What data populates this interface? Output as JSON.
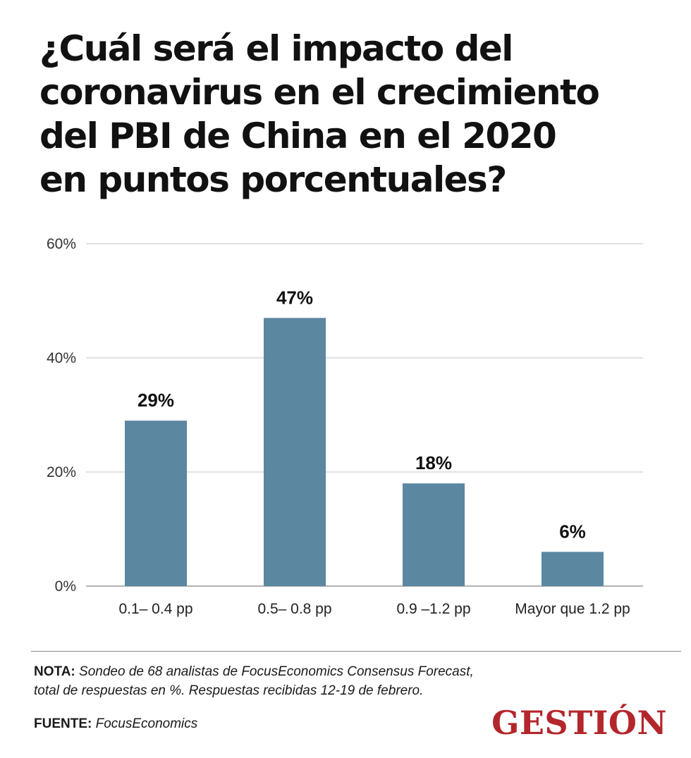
{
  "header": {
    "title_lines": [
      "¿Cuál será el impacto del",
      "coronavirus en el crecimiento",
      "del PBI de China en el 2020",
      "en puntos porcentuales?"
    ]
  },
  "chart_data": {
    "type": "bar",
    "title": "¿Cuál será el impacto del coronavirus en el crecimiento del PBI de China en el 2020 en puntos porcentuales?",
    "categories": [
      "0.1– 0.4 pp",
      "0.5– 0.8 pp",
      "0.9 –1.2 pp",
      "Mayor que 1.2 pp"
    ],
    "values": [
      29,
      47,
      18,
      6
    ],
    "data_labels": [
      "29%",
      "47%",
      "18%",
      "6%"
    ],
    "yticks": [
      "0%",
      "20%",
      "40%",
      "60%"
    ],
    "ytick_values": [
      0,
      20,
      40,
      60
    ],
    "ylim": [
      0,
      60
    ],
    "xlabel": "",
    "ylabel": "",
    "grid": true,
    "bar_color": "#5b87a0"
  },
  "footer": {
    "note_label": "NOTA:",
    "note_line1": "Sondeo de 68 analistas de FocusEconomics Consensus Forecast,",
    "note_line2": "total de respuestas en %. Respuestas recibidas 12-19 de febrero.",
    "source_label": "FUENTE:",
    "source_text": "FocusEconomics",
    "logo": "GESTIÓN"
  }
}
